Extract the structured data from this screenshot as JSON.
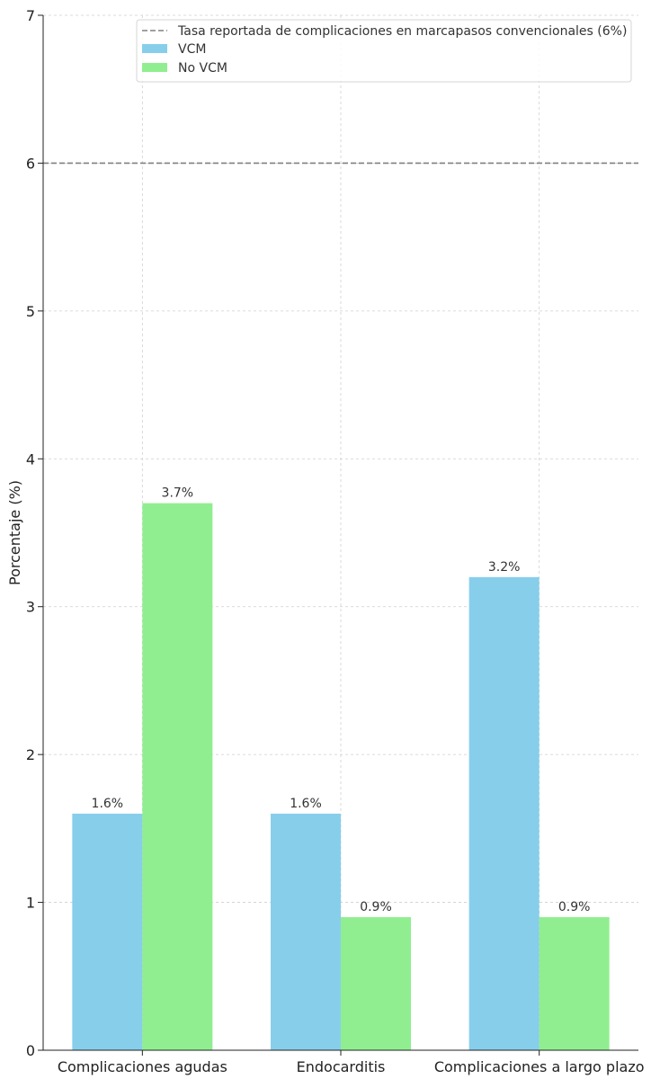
{
  "chart_data": {
    "type": "bar",
    "title": "",
    "xlabel": "",
    "ylabel": "Porcentaje (%)",
    "ylim": [
      0,
      7
    ],
    "yticks": [
      0,
      1,
      2,
      3,
      4,
      5,
      6,
      7
    ],
    "categories": [
      "Complicaciones agudas",
      "Endocarditis",
      "Complicaciones a largo plazo"
    ],
    "series": [
      {
        "name": "VCM",
        "values": [
          1.6,
          1.6,
          3.2
        ],
        "labels": [
          "1.6%",
          "1.6%",
          "3.2%"
        ],
        "color": "#87CEEB"
      },
      {
        "name": "No VCM",
        "values": [
          3.7,
          0.9,
          0.9
        ],
        "labels": [
          "3.7%",
          "0.9%",
          "0.9%"
        ],
        "color": "#90EE90"
      }
    ],
    "reference_line": {
      "value": 6,
      "label": "Tasa reportada de complicaciones en marcapasos convencionales (6%)",
      "color": "#808080",
      "style": "dashed"
    },
    "grid": true,
    "legend": "top-right"
  }
}
